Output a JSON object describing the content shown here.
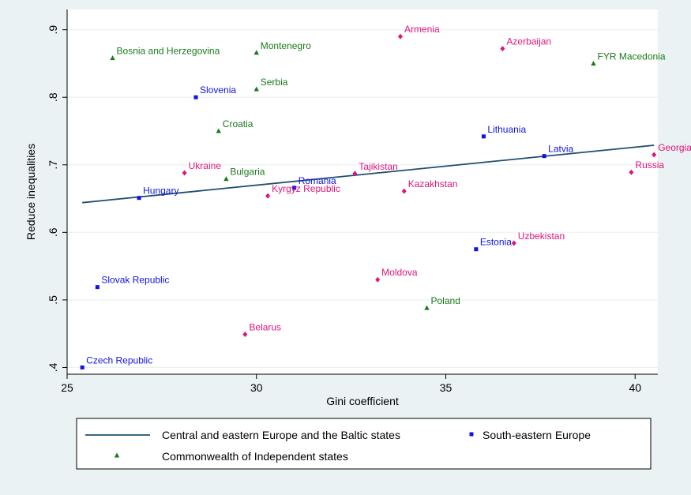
{
  "chart_data": {
    "type": "scatter",
    "title": "",
    "xlabel": "Gini coefficient",
    "ylabel": "Reduce inequalities",
    "xlim": [
      25,
      40.6
    ],
    "ylim": [
      0.39,
      0.93
    ],
    "x_ticks": [
      25,
      30,
      35,
      40
    ],
    "x_tick_labels": [
      "25",
      "30",
      "35",
      "40"
    ],
    "y_ticks": [
      0.4,
      0.5,
      0.6,
      0.7,
      0.8,
      0.9
    ],
    "y_tick_labels": [
      ".4",
      ".5",
      ".6",
      ".7",
      ".8",
      ".9"
    ],
    "grid": "horizontal",
    "legend_position": "bottom",
    "fit_line": {
      "name": "Central and eastern Europe and the Baltic states",
      "color": "#1f4e6e",
      "points": [
        [
          25.4,
          0.644
        ],
        [
          40.5,
          0.729
        ]
      ]
    },
    "series": [
      {
        "name": "South-eastern Europe",
        "color": "#1212e0",
        "marker": "square",
        "points": [
          {
            "label": "Slovenia",
            "x": 28.4,
            "y": 0.8
          },
          {
            "label": "Lithuania",
            "x": 36.0,
            "y": 0.742
          },
          {
            "label": "Latvia",
            "x": 37.6,
            "y": 0.713
          },
          {
            "label": "Hungary",
            "x": 26.9,
            "y": 0.651
          },
          {
            "label": "Romania",
            "x": 31.0,
            "y": 0.666
          },
          {
            "label": "Estonia",
            "x": 35.8,
            "y": 0.575
          },
          {
            "label": "Slovak Republic",
            "x": 25.8,
            "y": 0.519
          },
          {
            "label": "Czech Republic",
            "x": 25.4,
            "y": 0.4
          }
        ]
      },
      {
        "name": "Commonwealth of Independent states",
        "color": "#1a7a1a",
        "marker": "triangle",
        "points": [
          {
            "label": "Bosnia and Herzegovina",
            "x": 26.2,
            "y": 0.858
          },
          {
            "label": "Montenegro",
            "x": 30.0,
            "y": 0.866
          },
          {
            "label": "Serbia",
            "x": 30.0,
            "y": 0.812
          },
          {
            "label": "Croatia",
            "x": 29.0,
            "y": 0.75
          },
          {
            "label": "Bulgaria",
            "x": 29.2,
            "y": 0.679
          },
          {
            "label": "FYR Macedonia",
            "x": 38.9,
            "y": 0.85
          },
          {
            "label": "Poland",
            "x": 34.5,
            "y": 0.488
          }
        ]
      },
      {
        "name": "",
        "color": "#e0147a",
        "marker": "diamond",
        "points": [
          {
            "label": "Armenia",
            "x": 33.8,
            "y": 0.89
          },
          {
            "label": "Azerbaijan",
            "x": 36.5,
            "y": 0.872
          },
          {
            "label": "Georgia",
            "x": 40.5,
            "y": 0.715
          },
          {
            "label": "Russia",
            "x": 39.9,
            "y": 0.689
          },
          {
            "label": "Ukraine",
            "x": 28.1,
            "y": 0.688
          },
          {
            "label": "Tajikistan",
            "x": 32.6,
            "y": 0.687
          },
          {
            "label": "Kyrgyz Republic",
            "x": 30.3,
            "y": 0.654
          },
          {
            "label": "Kazakhstan",
            "x": 33.9,
            "y": 0.661
          },
          {
            "label": "Uzbekistan",
            "x": 36.8,
            "y": 0.584
          },
          {
            "label": "Moldova",
            "x": 33.2,
            "y": 0.53
          },
          {
            "label": "Belarus",
            "x": 29.7,
            "y": 0.449
          }
        ]
      }
    ],
    "legend": [
      {
        "label": "Central and eastern Europe and the Baltic states",
        "kind": "line",
        "color": "#1f4e6e"
      },
      {
        "label": "South-eastern Europe",
        "kind": "square",
        "color": "#1212e0"
      },
      {
        "label": "Commonwealth of Independent states",
        "kind": "triangle",
        "color": "#1a7a1a"
      }
    ]
  }
}
